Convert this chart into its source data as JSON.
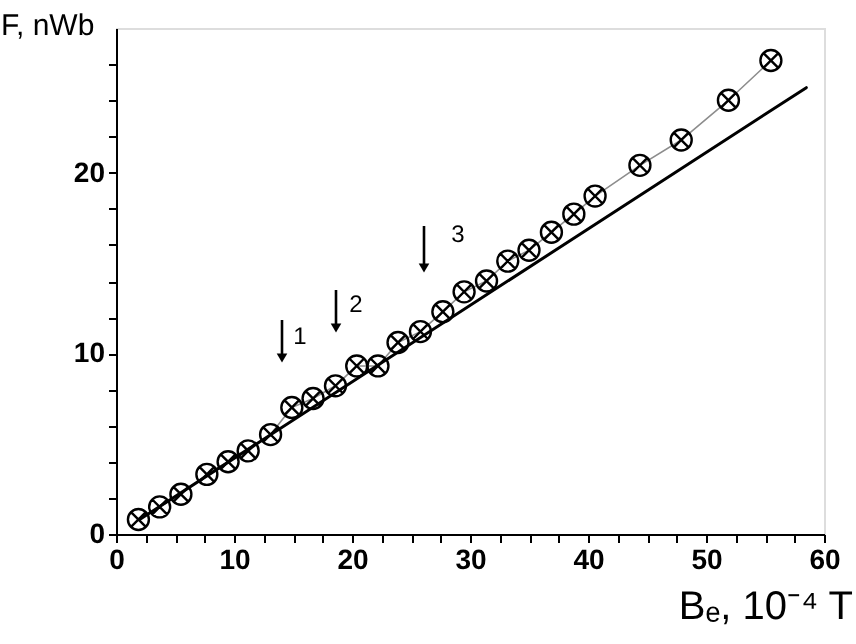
{
  "chart_data": {
    "type": "line",
    "xlabel": "Bₑ, 10⁻⁴ T",
    "ylabel": "F, nWb",
    "xlim": [
      0,
      60
    ],
    "ylim": [
      0,
      28
    ],
    "xticks": [
      0,
      {
        "value": 2.5,
        "label": null
      },
      {
        "value": 5,
        "label": null
      },
      {
        "value": 7.5,
        "label": null
      },
      10,
      {
        "value": 12.5,
        "label": null
      },
      {
        "value": 15,
        "label": null
      },
      {
        "value": 17.5,
        "label": null
      },
      20,
      {
        "value": 22.5,
        "label": null
      },
      {
        "value": 25,
        "label": null
      },
      {
        "value": 27.5,
        "label": null
      },
      30,
      {
        "value": 32.5,
        "label": null
      },
      {
        "value": 35,
        "label": null
      },
      {
        "value": 37.5,
        "label": null
      },
      40,
      {
        "value": 42.5,
        "label": null
      },
      {
        "value": 45,
        "label": null
      },
      {
        "value": 47.5,
        "label": null
      },
      50,
      {
        "value": 52.5,
        "label": null
      },
      {
        "value": 55,
        "label": null
      },
      {
        "value": 57.5,
        "label": null
      },
      60
    ],
    "yticks": [
      0,
      {
        "value": 2,
        "label": null
      },
      {
        "value": 4,
        "label": null
      },
      {
        "value": 6,
        "label": null
      },
      {
        "value": 8,
        "label": null
      },
      10,
      {
        "value": 12,
        "label": null
      },
      {
        "value": 14,
        "label": null
      },
      {
        "value": 16,
        "label": null
      },
      {
        "value": 18,
        "label": null
      },
      20,
      {
        "value": 22,
        "label": null
      },
      {
        "value": 24,
        "label": null
      },
      {
        "value": 26,
        "label": null
      }
    ],
    "grid": false,
    "series": [
      {
        "marker": "cross",
        "line_style": "solid",
        "color": "#000000",
        "x": [
          1.9,
          3.7,
          5.5,
          7.7,
          9.5,
          11.2,
          13.1,
          14.9,
          16.7,
          18.6,
          20.4,
          22.2,
          23.9,
          25.8,
          27.7,
          29.5,
          31.4,
          33.2,
          35.0,
          36.9,
          38.8,
          40.6,
          44.4,
          47.9,
          51.9,
          55.5
        ],
        "values": [
          0.8,
          1.5,
          2.2,
          3.3,
          4.0,
          4.6,
          5.5,
          7.0,
          7.5,
          8.2,
          9.3,
          9.3,
          10.6,
          11.2,
          12.3,
          13.4,
          14.0,
          15.1,
          15.7,
          16.7,
          17.7,
          18.7,
          20.4,
          21.8,
          24.0,
          26.2
        ]
      },
      {
        "marker": "none",
        "line_style": "solid",
        "color": "#000000",
        "x": [
          2,
          58.5
        ],
        "values": [
          0.8,
          24.7
        ]
      }
    ],
    "annotations": [
      "1",
      "2",
      "3"
    ]
  }
}
